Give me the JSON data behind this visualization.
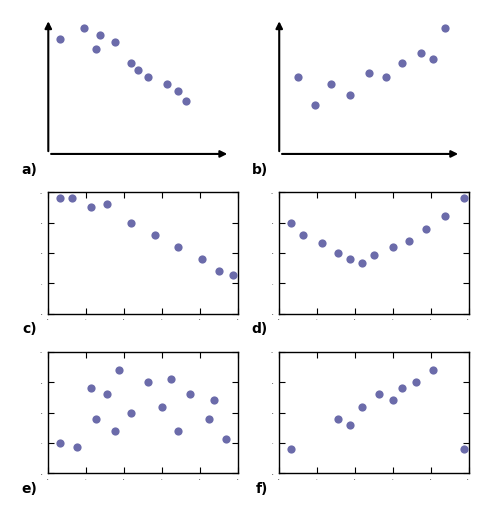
{
  "dot_color": "#6b6baa",
  "dot_size": 35,
  "background": "#ffffff",
  "plots": {
    "a": {
      "x": [
        0.5,
        1.5,
        2.2,
        2.0,
        2.8,
        3.5,
        3.8,
        4.2,
        5.0,
        5.5,
        5.8
      ],
      "y": [
        8.2,
        9.0,
        8.5,
        7.5,
        8.0,
        6.5,
        6.0,
        5.5,
        5.0,
        4.5,
        3.8
      ],
      "label": "a",
      "has_arrows": true
    },
    "b": {
      "x": [
        0.8,
        1.5,
        2.2,
        3.0,
        3.8,
        4.5,
        5.2,
        6.0,
        6.5,
        7.0
      ],
      "y": [
        5.5,
        3.5,
        5.0,
        4.2,
        5.8,
        5.5,
        6.5,
        7.2,
        6.8,
        9.0
      ],
      "label": "b",
      "has_arrows": true
    },
    "c": {
      "x": [
        0.5,
        1.0,
        1.8,
        2.5,
        3.5,
        4.5,
        5.5,
        6.5,
        7.2,
        7.8
      ],
      "y": [
        9.5,
        9.5,
        8.8,
        9.0,
        7.5,
        6.5,
        5.5,
        4.5,
        3.5,
        3.2
      ],
      "label": "c",
      "has_arrows": false
    },
    "d": {
      "x": [
        0.5,
        1.0,
        1.8,
        2.5,
        3.0,
        3.5,
        4.0,
        4.8,
        5.5,
        6.2,
        7.0,
        7.8
      ],
      "y": [
        7.5,
        6.5,
        5.8,
        5.0,
        4.5,
        4.2,
        4.8,
        5.5,
        6.0,
        7.0,
        8.0,
        9.5
      ],
      "label": "d",
      "has_arrows": false
    },
    "e": {
      "x": [
        0.5,
        1.2,
        1.8,
        2.5,
        2.0,
        3.0,
        3.5,
        4.2,
        4.8,
        5.5,
        6.0,
        6.8,
        7.5,
        2.8,
        5.2,
        7.0
      ],
      "y": [
        2.5,
        2.2,
        7.0,
        6.5,
        4.5,
        8.5,
        5.0,
        7.5,
        5.5,
        3.5,
        6.5,
        4.5,
        2.8,
        3.5,
        7.8,
        6.0
      ],
      "label": "e",
      "has_arrows": false
    },
    "f": {
      "x": [
        0.5,
        2.5,
        3.0,
        3.5,
        4.2,
        4.8,
        5.2,
        5.8,
        6.5,
        7.8
      ],
      "y": [
        2.0,
        4.5,
        4.0,
        5.5,
        6.5,
        6.0,
        7.0,
        7.5,
        8.5,
        2.0
      ],
      "label": "f",
      "has_arrows": false
    }
  },
  "xlim": [
    0,
    8
  ],
  "ylim": [
    0,
    10
  ]
}
